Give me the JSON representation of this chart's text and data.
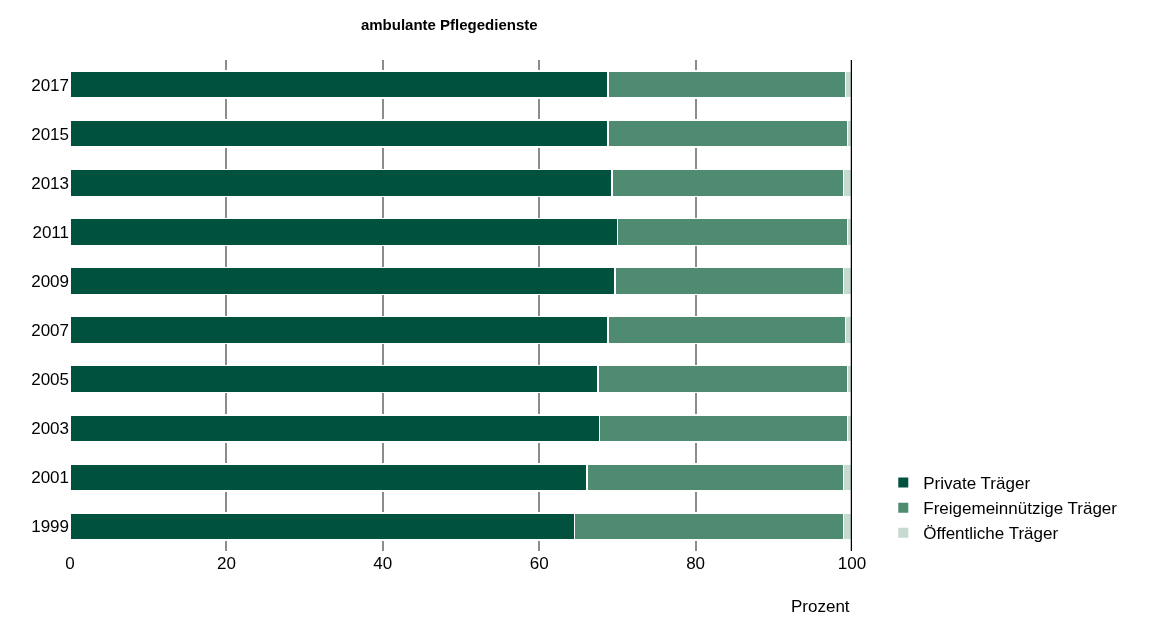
{
  "chart_data": {
    "type": "bar",
    "orientation": "horizontal",
    "stacked": true,
    "title": "ambulante Pflegedienste",
    "xlabel": "Prozent",
    "categories": [
      "2017",
      "2015",
      "2013",
      "2011",
      "2009",
      "2007",
      "2005",
      "2003",
      "2001",
      "1999"
    ],
    "series": [
      {
        "name": "Private Träger",
        "color": "#00523f",
        "values": [
          68.8,
          68.8,
          69.3,
          70.0,
          69.7,
          68.8,
          67.5,
          67.7,
          66.1,
          64.5
        ]
      },
      {
        "name": "Freigemeinnützige Träger",
        "color": "#4f8b70",
        "values": [
          30.4,
          30.6,
          29.6,
          29.4,
          29.2,
          30.4,
          31.9,
          31.7,
          32.8,
          34.4
        ]
      },
      {
        "name": "Öffentliche Träger",
        "color": "#c5dbcf",
        "values": [
          0.8,
          0.6,
          1.1,
          0.6,
          1.1,
          0.8,
          0.6,
          0.6,
          1.1,
          1.1
        ]
      }
    ],
    "xlim": [
      0,
      100
    ],
    "xticks": [
      0,
      20,
      40,
      60,
      80,
      100
    ],
    "grid": "x",
    "legend": "bottom right"
  }
}
